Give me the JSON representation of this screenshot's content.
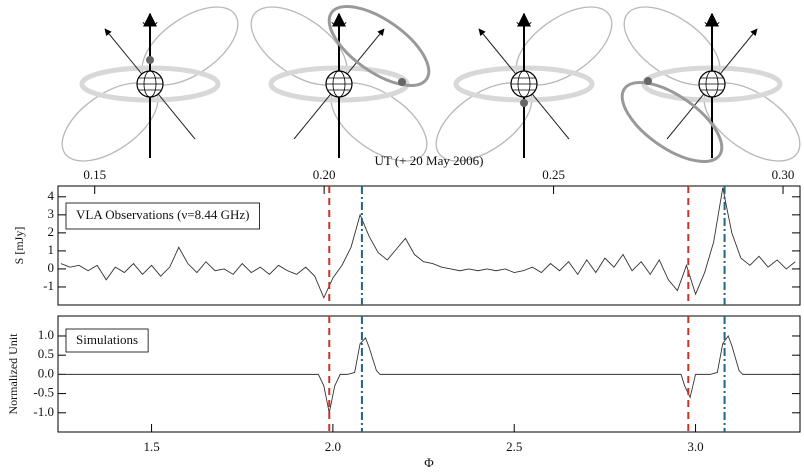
{
  "chart_data": [
    {
      "type": "line",
      "x2label": "UT (+ 20 May 2006)",
      "x2lim": [
        0.142,
        0.3037
      ],
      "x2ticks": [
        0.15,
        {
          "value": 0.2,
          "label": "0.20"
        },
        0.25,
        {
          "value": 0.3,
          "label": "0.30"
        }
      ],
      "ylabel": "S [mJy]",
      "annotation": "VLA Observations (ν=8.44 GHz)",
      "xlim": [
        1.242,
        3.288
      ],
      "ylim": [
        -2.0,
        4.6
      ],
      "yticks": [
        4,
        3,
        2,
        1,
        0,
        -1
      ],
      "color": "#333333",
      "x": [
        1.25,
        1.275,
        1.3,
        1.325,
        1.35,
        1.375,
        1.4,
        1.425,
        1.45,
        1.475,
        1.5,
        1.525,
        1.55,
        1.575,
        1.6,
        1.625,
        1.65,
        1.675,
        1.7,
        1.725,
        1.75,
        1.775,
        1.8,
        1.825,
        1.85,
        1.875,
        1.9,
        1.925,
        1.95,
        1.975,
        2.0,
        2.025,
        2.05,
        2.075,
        2.1,
        2.125,
        2.15,
        2.175,
        2.2,
        2.225,
        2.25,
        2.275,
        2.3,
        2.325,
        2.35,
        2.375,
        2.4,
        2.425,
        2.45,
        2.475,
        2.5,
        2.525,
        2.55,
        2.575,
        2.6,
        2.625,
        2.65,
        2.675,
        2.7,
        2.725,
        2.75,
        2.775,
        2.8,
        2.825,
        2.85,
        2.875,
        2.9,
        2.925,
        2.95,
        2.975,
        3.0,
        3.025,
        3.05,
        3.075,
        3.1,
        3.125,
        3.15,
        3.175,
        3.2,
        3.225,
        3.25,
        3.275
      ],
      "values": [
        0.3,
        0.1,
        0.2,
        -0.1,
        0.2,
        -0.6,
        0.1,
        -0.2,
        0.3,
        -0.3,
        0.2,
        -0.4,
        0.1,
        1.2,
        0.3,
        -0.2,
        0.4,
        -0.1,
        0.0,
        -0.3,
        0.3,
        -0.2,
        0.1,
        -0.3,
        0.2,
        -0.1,
        -0.3,
        0.1,
        -0.4,
        -1.6,
        -0.5,
        0.2,
        1.2,
        3.0,
        1.8,
        0.9,
        0.5,
        1.1,
        1.7,
        0.8,
        0.4,
        0.3,
        0.1,
        0.0,
        -0.1,
        0.0,
        -0.1,
        0.0,
        -0.1,
        0.0,
        -0.2,
        -0.1,
        0.1,
        -0.2,
        0.3,
        -0.1,
        0.4,
        -0.3,
        0.5,
        -0.2,
        0.6,
        0.1,
        0.8,
        -0.1,
        0.4,
        -0.3,
        0.5,
        -0.6,
        -1.2,
        0.2,
        -1.4,
        -0.2,
        1.5,
        4.5,
        2.0,
        0.6,
        0.2,
        0.7,
        0.1,
        0.5,
        0.0,
        0.4
      ],
      "vlines": [
        {
          "x": 1.99,
          "color": "#cc3322",
          "style": "dashed"
        },
        {
          "x": 2.08,
          "color": "#1f6680",
          "style": "dashdot"
        },
        {
          "x": 2.98,
          "color": "#cc3322",
          "style": "dashed"
        },
        {
          "x": 3.08,
          "color": "#1f6680",
          "style": "dashdot"
        }
      ]
    },
    {
      "type": "line",
      "ylabel": "Normalized Unit",
      "annotation": "Simulations",
      "xlabel": "Φ",
      "xlim": [
        1.242,
        3.288
      ],
      "xticks": [
        1.5,
        {
          "value": 2.0,
          "label": "2.0"
        },
        2.5,
        {
          "value": 3.0,
          "label": "3.0"
        }
      ],
      "ylim": [
        -1.5,
        1.52
      ],
      "yticks": [
        {
          "value": 1.0,
          "label": "1.0"
        },
        0.5,
        {
          "value": 0.0,
          "label": "0.0"
        },
        -0.5,
        {
          "value": -1.0,
          "label": "-1.0"
        }
      ],
      "color": "#333333",
      "x": [
        1.242,
        1.96,
        1.975,
        1.99,
        2.005,
        2.02,
        2.04,
        2.06,
        2.075,
        2.09,
        2.1,
        2.12,
        2.13,
        2.96,
        2.97,
        2.985,
        3.0,
        3.04,
        3.06,
        3.075,
        3.09,
        3.1,
        3.12,
        3.13,
        3.288
      ],
      "values": [
        0,
        0,
        -0.3,
        -1.0,
        -0.3,
        0,
        0,
        0.05,
        0.8,
        0.95,
        0.7,
        0.1,
        0,
        0,
        -0.3,
        -0.6,
        0,
        0,
        0.05,
        0.8,
        1.0,
        0.75,
        0.1,
        0,
        0
      ],
      "vlines": [
        {
          "x": 1.99,
          "color": "#cc3322",
          "style": "dashed"
        },
        {
          "x": 2.08,
          "color": "#1f6680",
          "style": "dashdot"
        },
        {
          "x": 2.98,
          "color": "#cc3322",
          "style": "dashed"
        },
        {
          "x": 3.08,
          "color": "#1f6680",
          "style": "dashdot"
        }
      ]
    }
  ]
}
